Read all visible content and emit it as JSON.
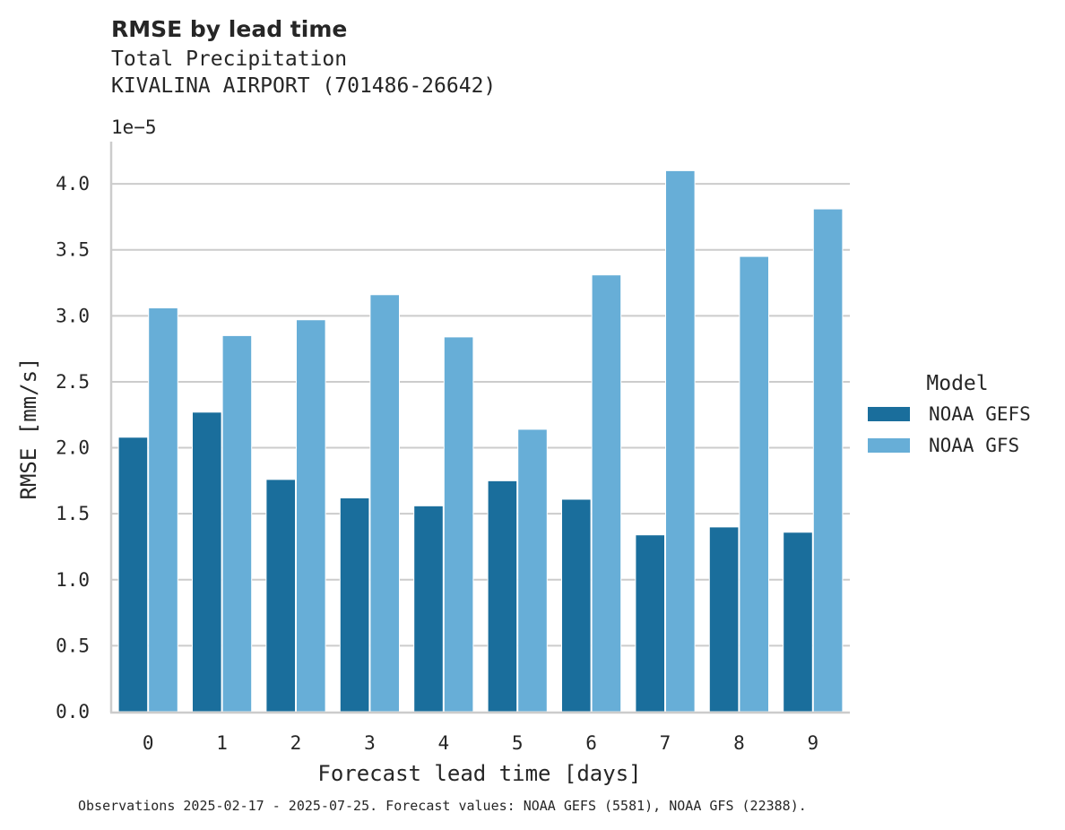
{
  "header": {
    "title": "RMSE by lead time",
    "subtitle_line1": "Total Precipitation",
    "subtitle_line2": "KIVALINA AIRPORT (701486-26642)"
  },
  "footnote": "Observations 2025-02-17 - 2025-07-25. Forecast values: NOAA GEFS (5581), NOAA GFS (22388).",
  "chart_data": {
    "type": "bar",
    "title": "RMSE by lead time",
    "subtitle": "Total Precipitation\nKIVALINA AIRPORT (701486-26642)",
    "xlabel": "Forecast lead time [days]",
    "ylabel": "RMSE [mm/s]",
    "y_scale_label": "1e−5",
    "categories": [
      "0",
      "1",
      "2",
      "3",
      "4",
      "5",
      "6",
      "7",
      "8",
      "9"
    ],
    "y_ticks": [
      "0.0",
      "0.5",
      "1.0",
      "1.5",
      "2.0",
      "2.5",
      "3.0",
      "3.5",
      "4.0"
    ],
    "ylim": [
      0,
      4.32
    ],
    "grid": true,
    "legend_title": "Model",
    "legend_position": "right",
    "series": [
      {
        "name": "NOAA GEFS",
        "color": "#1a6e9c",
        "values": [
          2.08,
          2.27,
          1.76,
          1.62,
          1.56,
          1.75,
          1.61,
          1.34,
          1.4,
          1.36
        ]
      },
      {
        "name": "NOAA GFS",
        "color": "#67aed7",
        "values": [
          3.06,
          2.85,
          2.97,
          3.16,
          2.84,
          2.14,
          3.31,
          4.1,
          3.45,
          3.81
        ]
      }
    ]
  }
}
